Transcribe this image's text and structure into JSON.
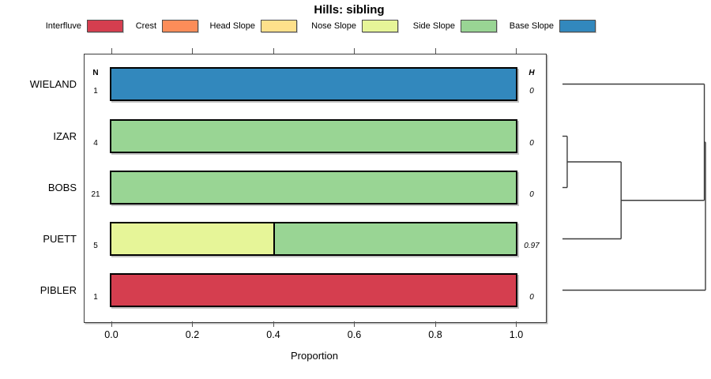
{
  "title": "Hills: sibling",
  "legend": {
    "items": [
      {
        "label": "Interfluve",
        "color": "#D53E4F"
      },
      {
        "label": "Crest",
        "color": "#FC8D59"
      },
      {
        "label": "Head Slope",
        "color": "#FEE08B"
      },
      {
        "label": "Nose Slope",
        "color": "#E6F598"
      },
      {
        "label": "Side Slope",
        "color": "#99D594"
      },
      {
        "label": "Base Slope",
        "color": "#3288BD"
      }
    ]
  },
  "columns": {
    "n_header": "N",
    "h_header": "H"
  },
  "axis": {
    "label": "Proportion",
    "tick_labels": [
      "0.0",
      "0.2",
      "0.4",
      "0.6",
      "0.8",
      "1.0"
    ],
    "tick_values": [
      0,
      0.2,
      0.4,
      0.6,
      0.8,
      1.0
    ],
    "range": [
      0,
      1
    ]
  },
  "chart_data": {
    "type": "bar",
    "orientation": "horizontal",
    "stacked": true,
    "title": "Hills: sibling",
    "xlabel": "Proportion",
    "xlim": [
      0,
      1
    ],
    "legend_position": "top",
    "grid": false,
    "categories": [
      "WIELAND",
      "IZAR",
      "BOBS",
      "PUETT",
      "PIBLER"
    ],
    "n_values": [
      1,
      4,
      21,
      5,
      1
    ],
    "h_values": [
      "0",
      "0",
      "0",
      "0.97",
      "0"
    ],
    "rows": [
      {
        "label": "WIELAND",
        "n": "1",
        "h": "0",
        "segments": [
          {
            "class": "Base Slope",
            "value": 1.0,
            "color": "#3288BD"
          }
        ]
      },
      {
        "label": "IZAR",
        "n": "4",
        "h": "0",
        "segments": [
          {
            "class": "Side Slope",
            "value": 1.0,
            "color": "#99D594"
          }
        ]
      },
      {
        "label": "BOBS",
        "n": "21",
        "h": "0",
        "segments": [
          {
            "class": "Side Slope",
            "value": 1.0,
            "color": "#99D594"
          }
        ]
      },
      {
        "label": "PUETT",
        "n": "5",
        "h": "0.97",
        "segments": [
          {
            "class": "Nose Slope",
            "value": 0.4,
            "color": "#E6F598"
          },
          {
            "class": "Side Slope",
            "value": 0.6,
            "color": "#99D594"
          }
        ]
      },
      {
        "label": "PIBLER",
        "n": "1",
        "h": "0",
        "segments": [
          {
            "class": "Interfluve",
            "value": 1.0,
            "color": "#D53E4F"
          }
        ]
      }
    ],
    "dendrogram": {
      "leaves": [
        "WIELAND",
        "IZAR",
        "BOBS",
        "PUETT",
        "PIBLER"
      ],
      "merges": [
        {
          "children": [
            1,
            2
          ],
          "height": 0.033
        },
        {
          "children": [
            5,
            3
          ],
          "height": 0.41
        },
        {
          "children": [
            0,
            6
          ],
          "height": 0.992
        },
        {
          "children": [
            7,
            4
          ],
          "height": 1.0
        }
      ]
    }
  }
}
